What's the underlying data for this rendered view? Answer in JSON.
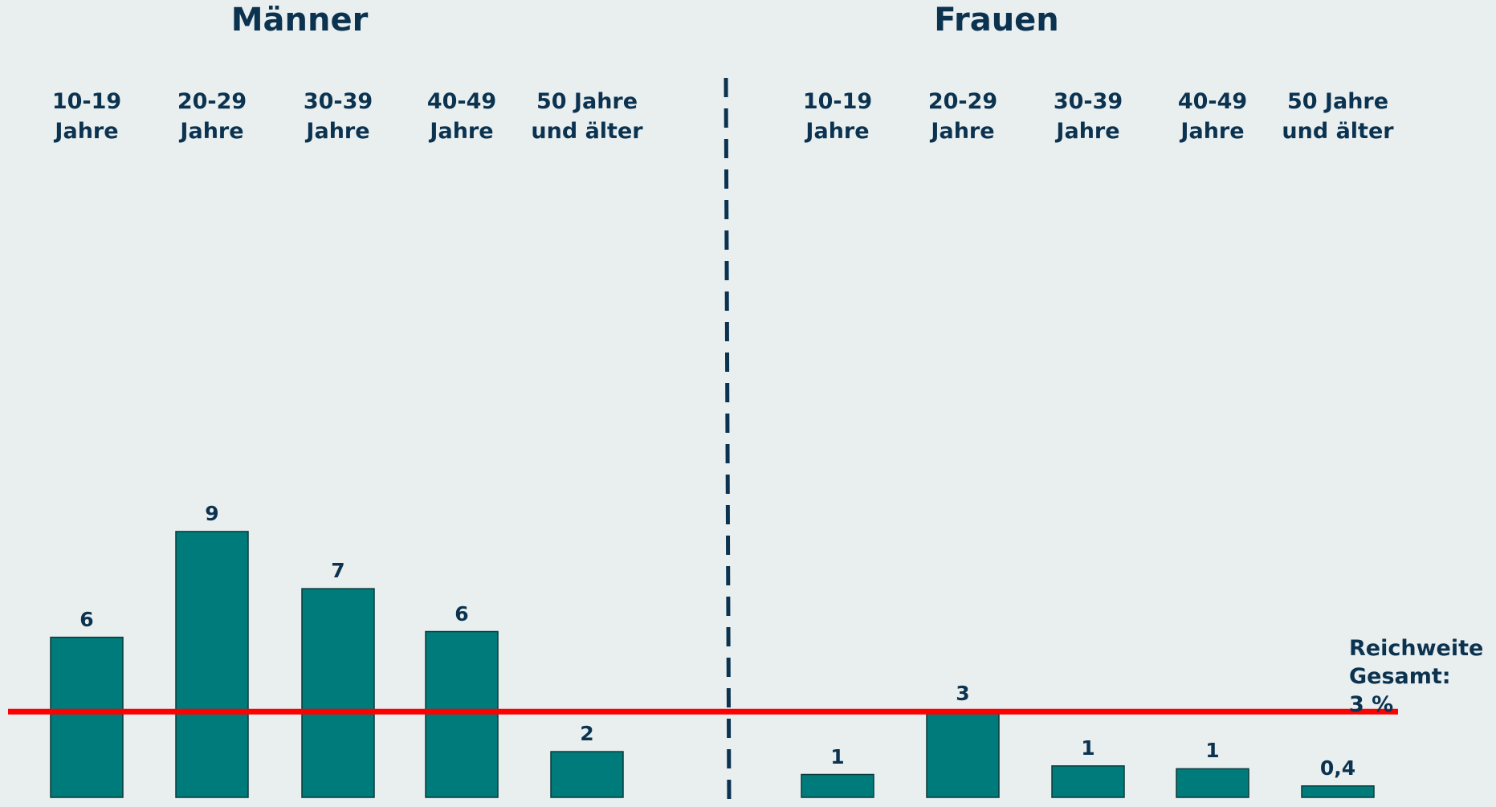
{
  "chart_data": {
    "type": "bar",
    "color": "#007b7b",
    "ylim": [
      0,
      10
    ],
    "panels": [
      {
        "title": "Männer",
        "categories": [
          "10-19\nJahre",
          "20-29\nJahre",
          "30-39\nJahre",
          "40-49\nJahre",
          "50 Jahre\nund älter"
        ],
        "values": [
          5.6,
          9.3,
          7.3,
          5.8,
          1.6
        ],
        "value_labels": [
          "6",
          "9",
          "7",
          "6",
          "2"
        ]
      },
      {
        "title": "Frauen",
        "categories": [
          "10-19\nJahre",
          "20-29\nJahre",
          "30-39\nJahre",
          "40-49\nJahre",
          "50 Jahre\nund älter"
        ],
        "values": [
          0.8,
          3.0,
          1.1,
          1.0,
          0.4
        ],
        "value_labels": [
          "1",
          "3",
          "1",
          "1",
          "0,4"
        ]
      }
    ],
    "reference_line": {
      "value": 3,
      "color": "#ff0000",
      "label": "Reichweite\nGesamt:\n3 %"
    }
  }
}
